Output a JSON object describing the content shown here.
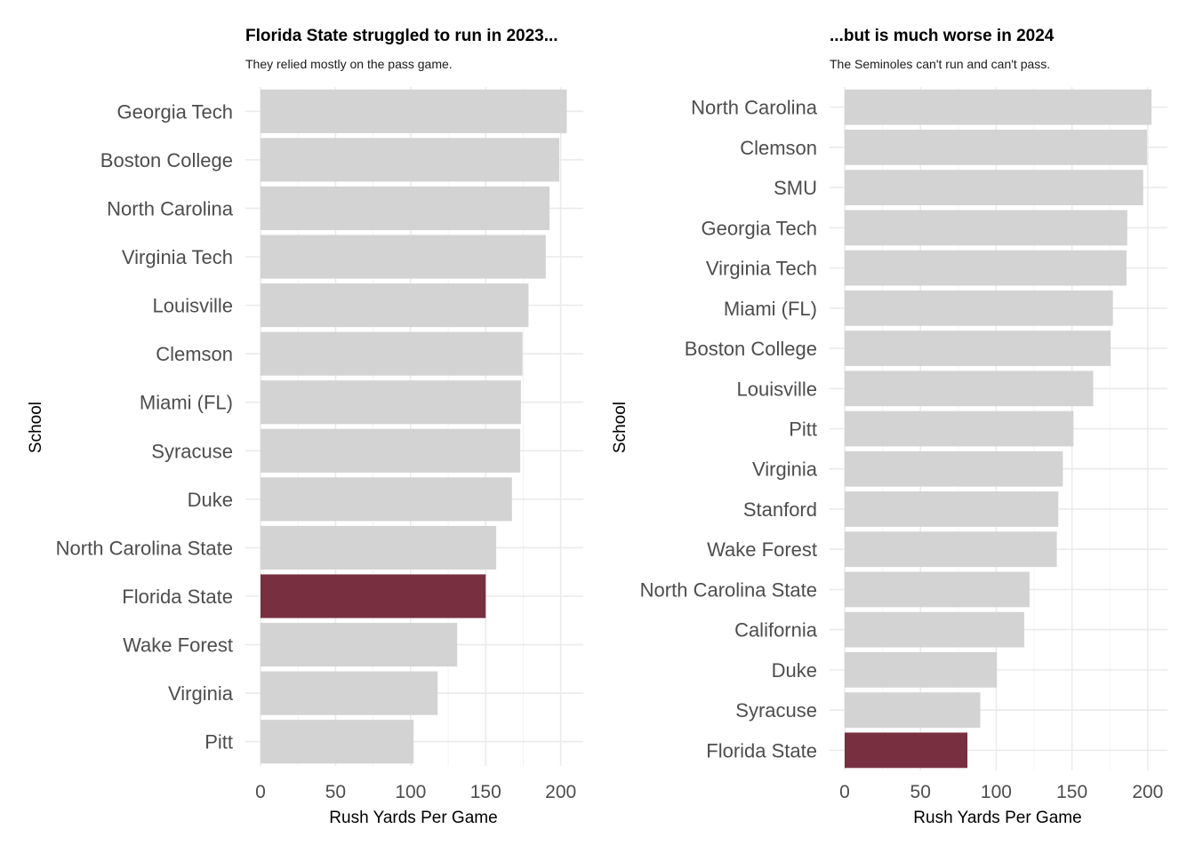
{
  "chart_data": [
    {
      "type": "bar",
      "orientation": "horizontal",
      "title": "Florida State struggled to run in 2023...",
      "subtitle": "They relied mostly on the pass game.",
      "xlabel": "Rush Yards Per Game",
      "ylabel": "School",
      "xlim": [
        0,
        215
      ],
      "xticks": [
        0,
        50,
        100,
        150,
        200
      ],
      "grid": true,
      "highlight": "Florida State",
      "colors": {
        "default": "#d3d3d3",
        "highlight": "#782f40"
      },
      "categories": [
        "Georgia Tech",
        "Boston College",
        "North Carolina",
        "Virginia Tech",
        "Louisville",
        "Clemson",
        "Miami (FL)",
        "Syracuse",
        "Duke",
        "North Carolina State",
        "Florida State",
        "Wake Forest",
        "Virginia",
        "Pitt"
      ],
      "values": [
        204,
        199,
        192.5,
        190,
        178.5,
        174.5,
        173.5,
        173,
        167.5,
        157,
        150,
        131,
        118,
        102
      ]
    },
    {
      "type": "bar",
      "orientation": "horizontal",
      "title": "...but is much worse in 2024",
      "subtitle": "The Seminoles can't run and can't pass.",
      "xlabel": "Rush Yards Per Game",
      "ylabel": "School",
      "xlim": [
        0,
        213
      ],
      "xticks": [
        0,
        50,
        100,
        150,
        200
      ],
      "grid": true,
      "highlight": "Florida State",
      "colors": {
        "default": "#d3d3d3",
        "highlight": "#782f40"
      },
      "categories": [
        "North Carolina",
        "Clemson",
        "SMU",
        "Georgia Tech",
        "Virginia Tech",
        "Miami (FL)",
        "Boston College",
        "Louisville",
        "Pitt",
        "Virginia",
        "Stanford",
        "Wake Forest",
        "North Carolina State",
        "California",
        "Duke",
        "Syracuse",
        "Florida State"
      ],
      "values": [
        202.5,
        199.5,
        197,
        186.5,
        186,
        177,
        175.5,
        164,
        151,
        144,
        141,
        140,
        122,
        118.5,
        100.5,
        89.5,
        81
      ]
    }
  ]
}
